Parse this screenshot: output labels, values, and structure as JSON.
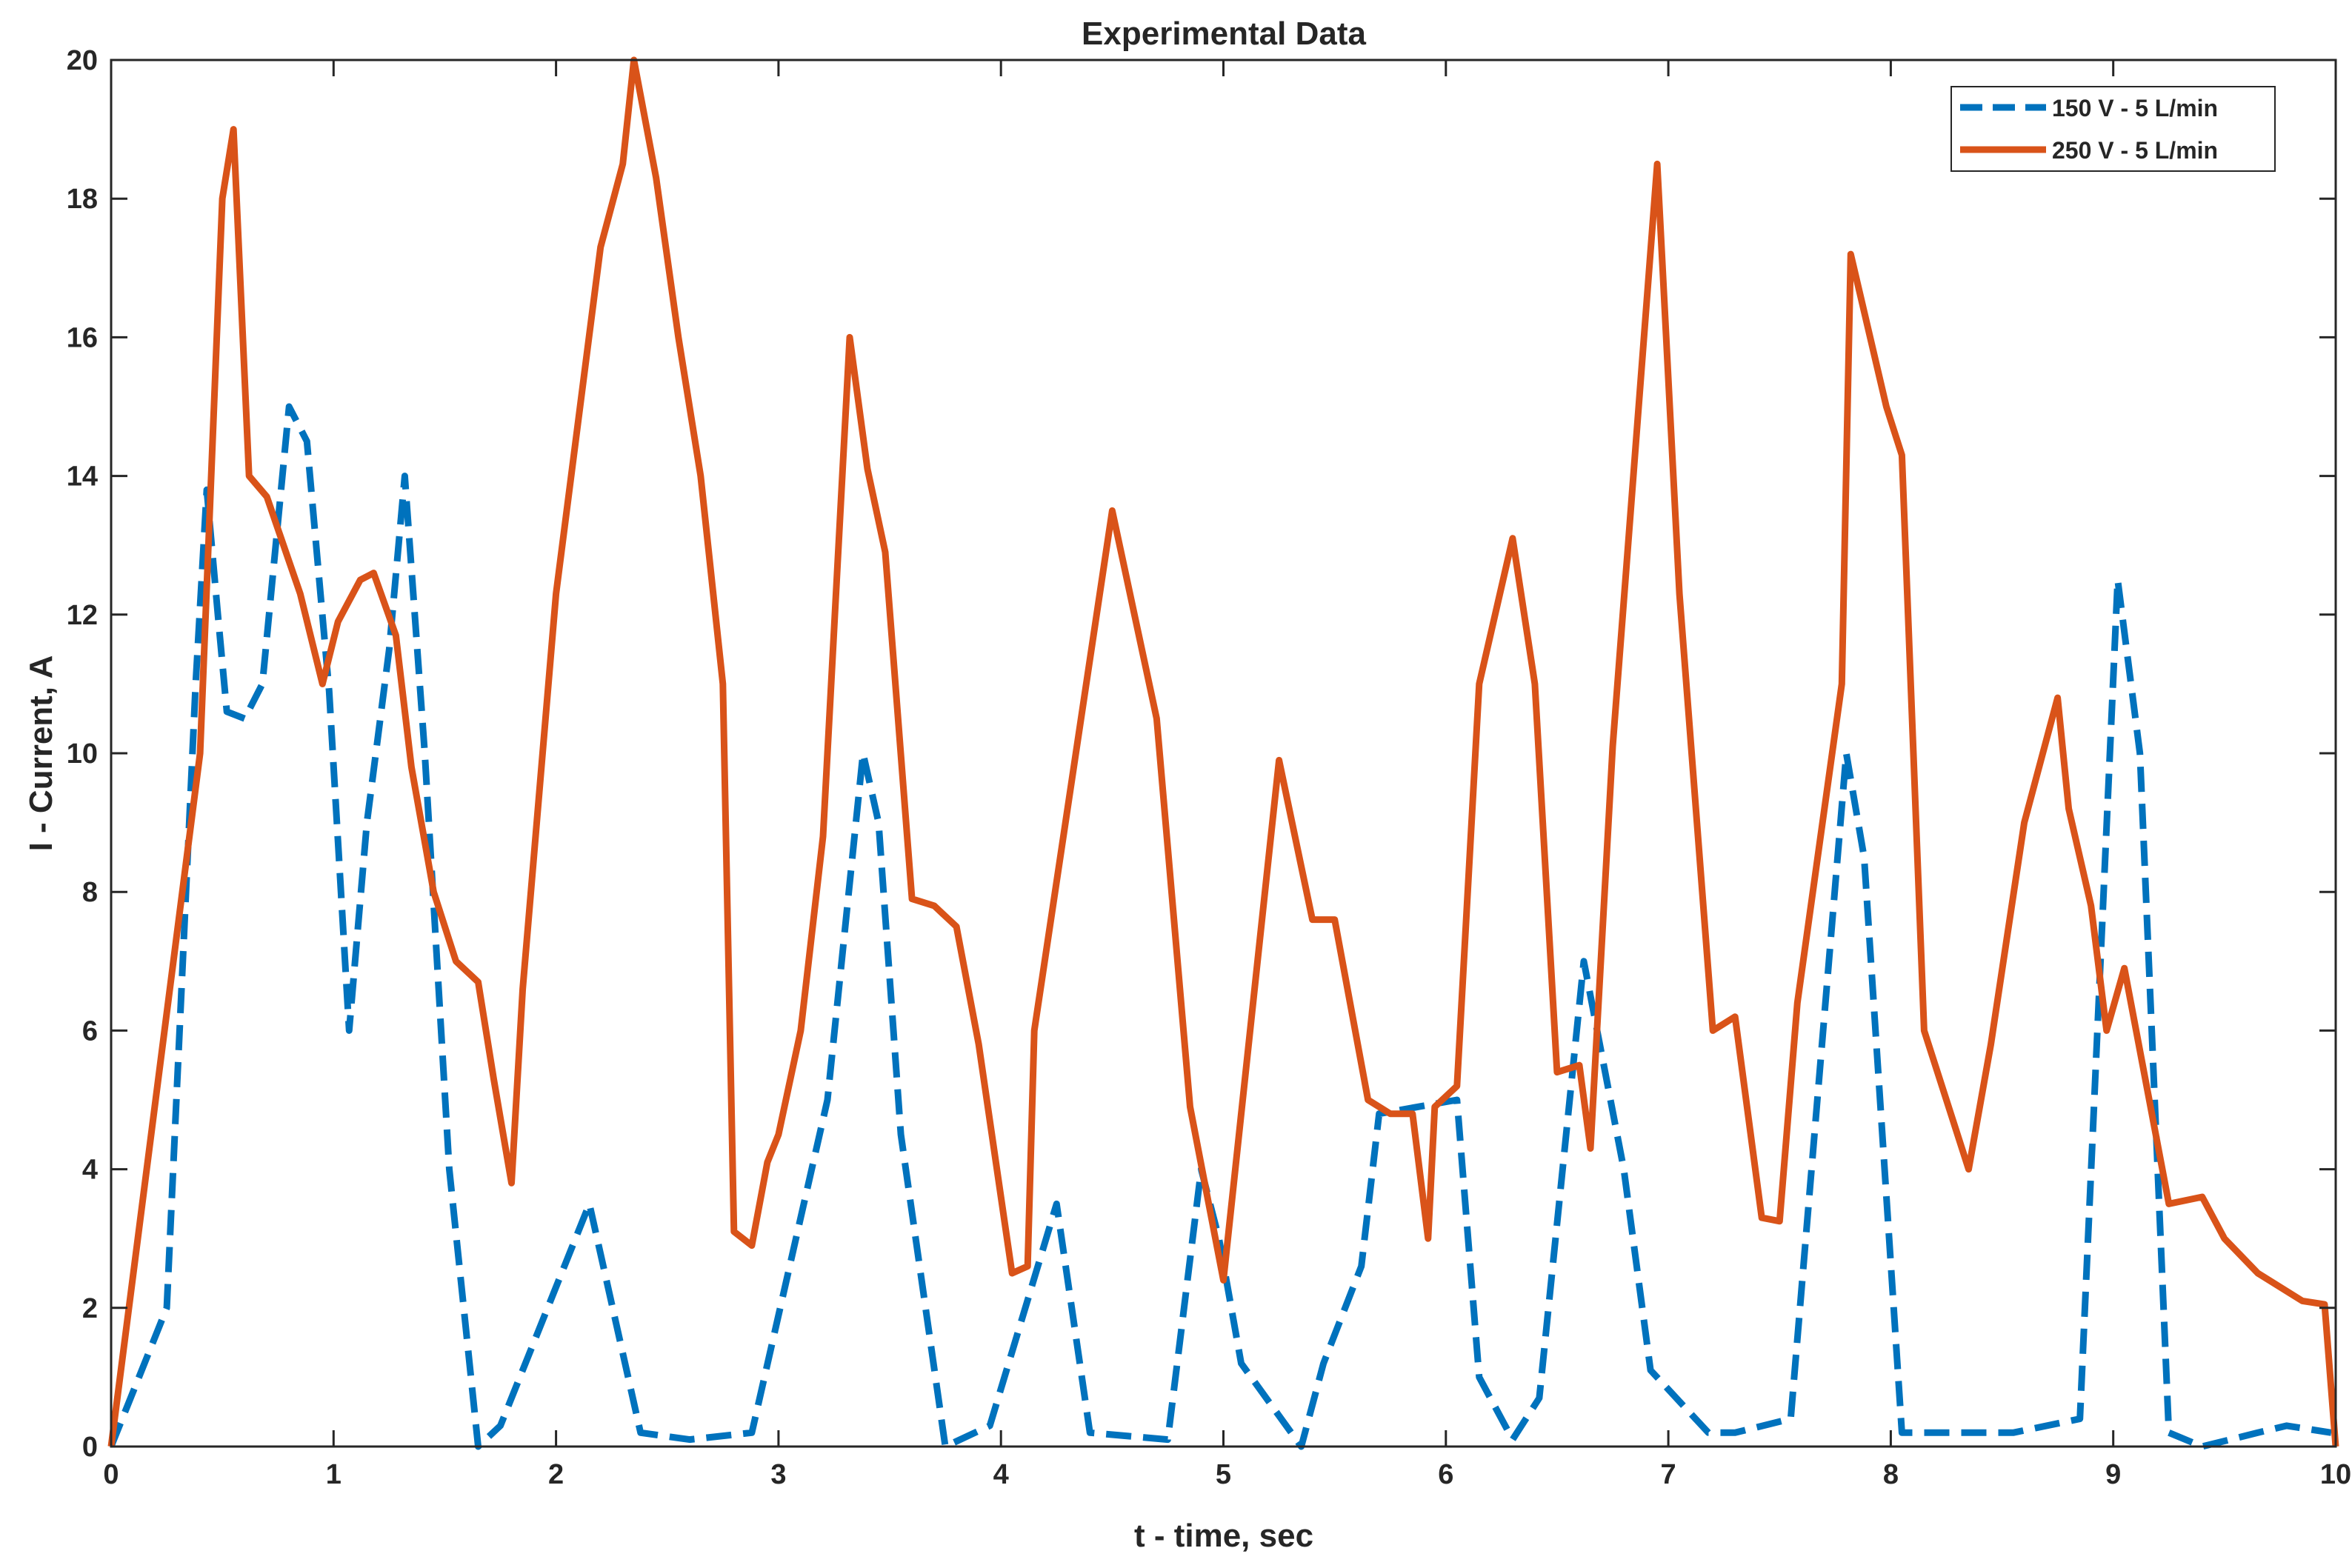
{
  "chart_data": {
    "type": "line",
    "title": "Experimental Data",
    "xlabel": "t - time, sec",
    "ylabel": "I - Current, A",
    "xlim": [
      0,
      10
    ],
    "ylim": [
      0,
      20
    ],
    "xticks": [
      0,
      1,
      2,
      3,
      4,
      5,
      6,
      7,
      8,
      9,
      10
    ],
    "yticks": [
      0,
      2,
      4,
      6,
      8,
      10,
      12,
      14,
      16,
      18,
      20
    ],
    "grid": false,
    "legend_position": "top-right",
    "series": [
      {
        "name": "150 V - 5 L/min",
        "color": "#0072BD",
        "line_style": "dashed",
        "x": [
          0,
          0.25,
          0.38,
          0.43,
          0.48,
          0.52,
          0.6,
          0.68,
          0.8,
          0.88,
          0.98,
          1.07,
          1.15,
          1.25,
          1.32,
          1.41,
          1.52,
          1.65,
          1.75,
          2.15,
          2.38,
          2.6,
          2.88,
          3.22,
          3.38,
          3.45,
          3.55,
          3.75,
          3.95,
          4.25,
          4.4,
          4.75,
          4.9,
          4.98,
          5.08,
          5.35,
          5.45,
          5.62,
          5.7,
          6.05,
          6.15,
          6.3,
          6.42,
          6.62,
          6.8,
          6.92,
          7.18,
          7.3,
          7.55,
          7.8,
          7.88,
          8.05,
          8.25,
          8.55,
          8.85,
          9.02,
          9.12,
          9.25,
          9.4,
          9.65,
          9.78,
          9.98
        ],
        "values": [
          0,
          2,
          11,
          13.8,
          12,
          10.6,
          10.5,
          11,
          15,
          14.5,
          10.9,
          6,
          9,
          11.5,
          14,
          10,
          4,
          0,
          0.3,
          3.5,
          0.2,
          0.1,
          0.2,
          5,
          10,
          9,
          4.5,
          0,
          0.3,
          3.5,
          0.2,
          0.1,
          4,
          3,
          1.2,
          0,
          1.2,
          2.6,
          4.8,
          5,
          1,
          0.1,
          0.7,
          7,
          4,
          1.1,
          0.2,
          0.2,
          0.4,
          10,
          8.5,
          0.2,
          0.2,
          0.2,
          0.4,
          12.5,
          10,
          0.2,
          0,
          0.2,
          0.3,
          0.2
        ]
      },
      {
        "name": "250 V - 5 L/min",
        "color": "#D95319",
        "line_style": "solid",
        "x": [
          0,
          0.4,
          0.5,
          0.55,
          0.62,
          0.7,
          0.85,
          0.95,
          1.02,
          1.12,
          1.18,
          1.28,
          1.35,
          1.45,
          1.55,
          1.65,
          1.72,
          1.8,
          1.85,
          2.0,
          2.2,
          2.3,
          2.35,
          2.45,
          2.55,
          2.65,
          2.75,
          2.8,
          2.88,
          2.95,
          3.0,
          3.1,
          3.2,
          3.32,
          3.4,
          3.48,
          3.6,
          3.7,
          3.8,
          3.9,
          4.05,
          4.12,
          4.15,
          4.5,
          4.7,
          4.85,
          5.0,
          5.25,
          5.4,
          5.5,
          5.65,
          5.75,
          5.85,
          5.92,
          5.95,
          6.05,
          6.15,
          6.3,
          6.4,
          6.5,
          6.6,
          6.65,
          6.75,
          6.95,
          7.05,
          7.2,
          7.3,
          7.42,
          7.5,
          7.58,
          7.78,
          7.82,
          7.98,
          8.05,
          8.15,
          8.35,
          8.45,
          8.6,
          8.75,
          8.8,
          8.9,
          8.97,
          9.05,
          9.25,
          9.4,
          9.5,
          9.65,
          9.85,
          9.95,
          10.0
        ],
        "values": [
          0,
          10,
          18,
          19,
          14,
          13.7,
          12.3,
          11,
          11.9,
          12.5,
          12.6,
          11.7,
          9.8,
          8,
          7,
          6.7,
          5.3,
          3.8,
          6.6,
          12.3,
          17.3,
          18.5,
          20,
          18.3,
          16,
          14,
          11,
          3.1,
          2.9,
          4.1,
          4.5,
          6,
          8.8,
          16,
          14.1,
          12.9,
          7.9,
          7.8,
          7.5,
          5.8,
          2.5,
          2.6,
          6,
          13.5,
          10.5,
          4.9,
          2.4,
          9.9,
          7.6,
          7.6,
          5,
          4.8,
          4.8,
          3,
          4.9,
          5.2,
          11,
          13.1,
          11,
          5.4,
          5.5,
          4.3,
          10.1,
          18.5,
          12.3,
          6,
          6.2,
          3.3,
          3.25,
          6.4,
          11,
          17.2,
          15,
          14.3,
          6,
          4,
          5.8,
          9,
          10.8,
          9.2,
          7.8,
          6,
          6.9,
          3.5,
          3.6,
          3,
          2.5,
          2.1,
          2.05,
          0
        ]
      }
    ]
  }
}
